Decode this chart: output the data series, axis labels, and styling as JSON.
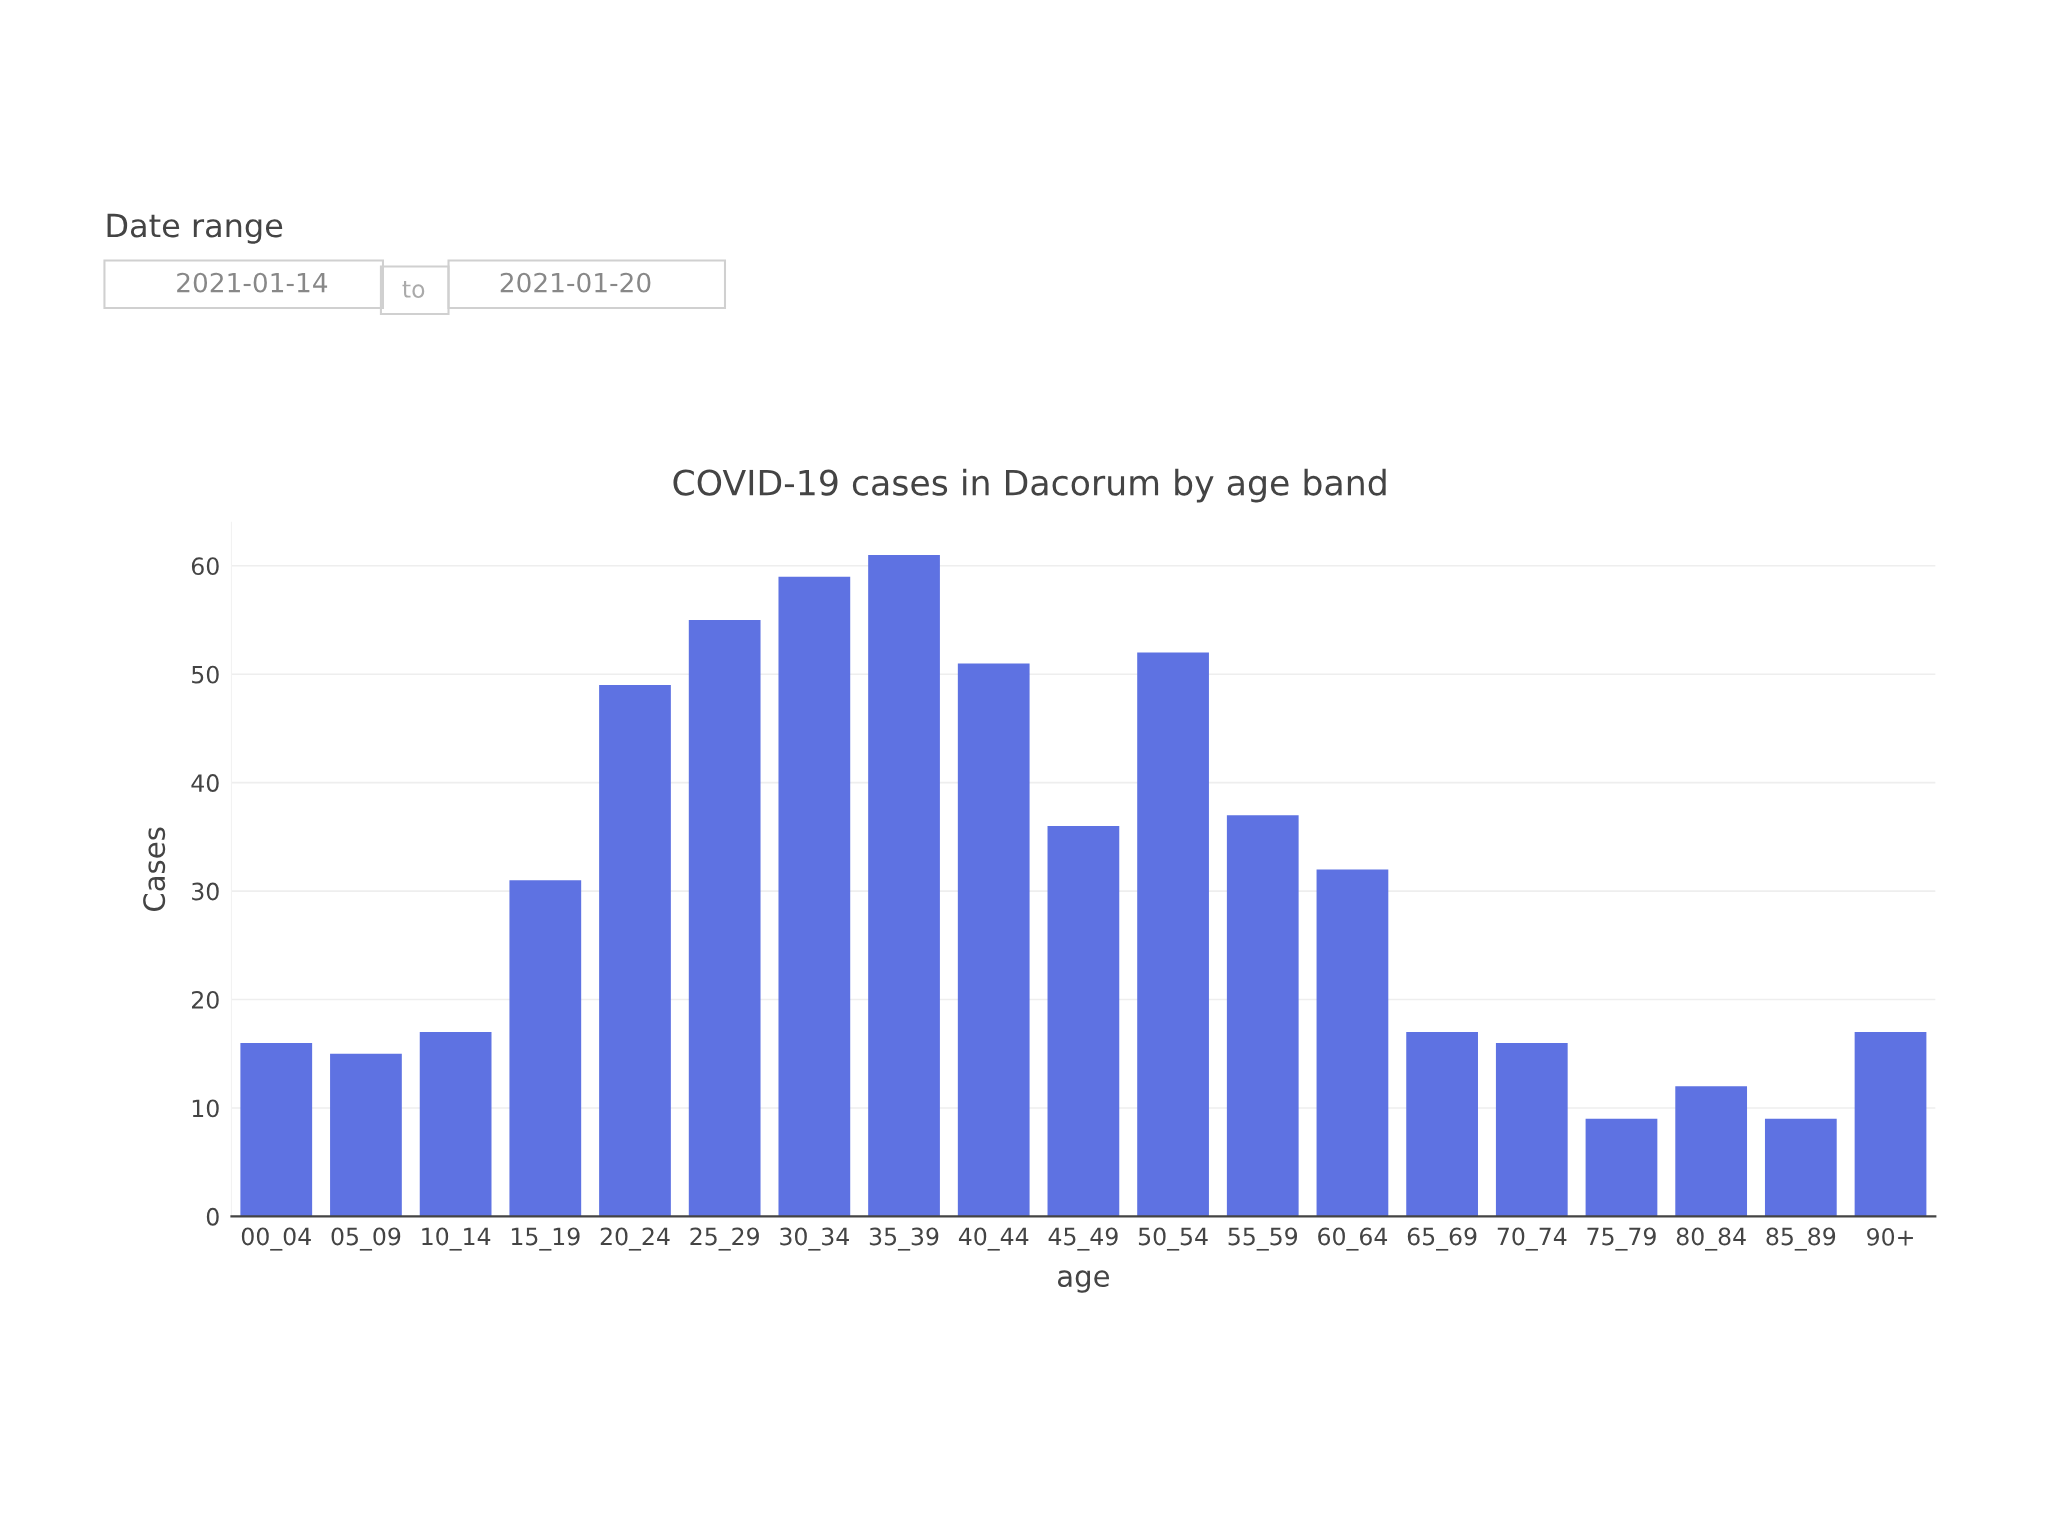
{
  "chart_data": {
    "type": "bar",
    "title": "COVID-19 cases in Dacorum by age band",
    "xlabel": "age",
    "ylabel": "Cases",
    "categories": [
      "00_04",
      "05_09",
      "10_14",
      "15_19",
      "20_24",
      "25_29",
      "30_34",
      "35_39",
      "40_44",
      "45_49",
      "50_54",
      "55_59",
      "60_64",
      "65_69",
      "70_74",
      "75_79",
      "80_84",
      "85_89",
      "90+"
    ],
    "values": [
      16,
      15,
      17,
      31,
      49,
      55,
      59,
      61,
      51,
      36,
      52,
      37,
      32,
      17,
      16,
      9,
      12,
      9,
      17
    ],
    "color": "#5e72e2",
    "ylim": [
      0,
      64
    ],
    "yticks": [
      0,
      10,
      20,
      30,
      40,
      50,
      60
    ],
    "grid": "y",
    "annotations": [
      "Date range",
      "2021-01-14",
      "to",
      "2021-01-20"
    ]
  }
}
